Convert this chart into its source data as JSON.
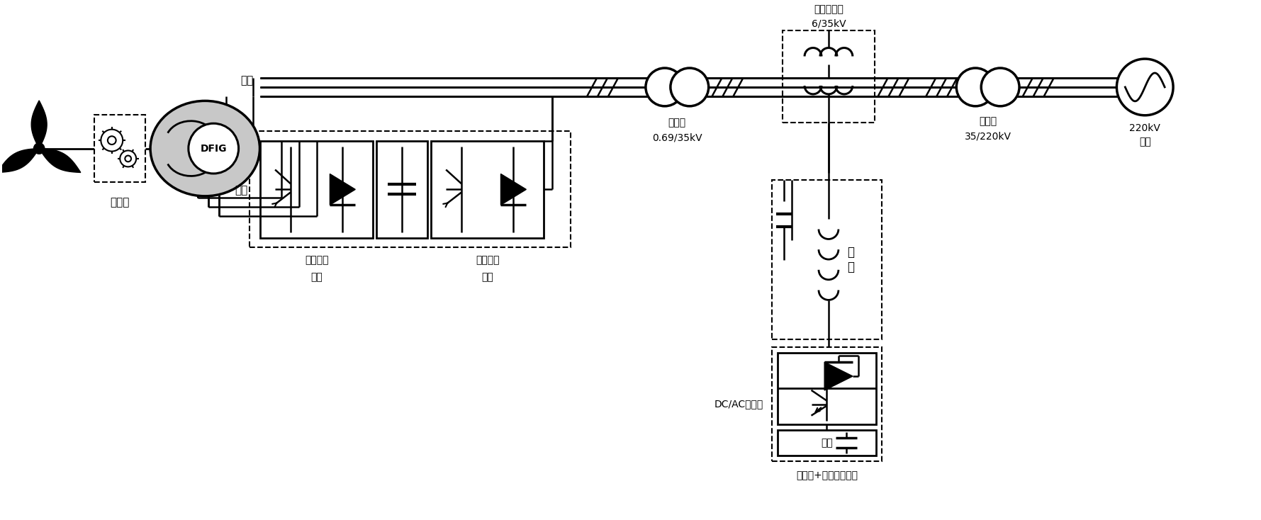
{
  "bg_color": "#ffffff",
  "labels": {
    "gearbox": "齿轮箱",
    "dfig": "DFIG",
    "stator": "定子",
    "rotor": "转子",
    "rotor_conv_line1": "转子侧变",
    "rotor_conv_line2": "流器",
    "grid_conv_line1": "电网侧变",
    "grid_conv_line2": "流器",
    "transformer1_line1": "变压器",
    "transformer1_line2": "0.69/35kV",
    "series_title": "串联变压器",
    "series_kv": "6/35kV",
    "filter": "滤\n波",
    "dcac": "DC/AC变流器",
    "transformer2_line1": "变压器",
    "transformer2_line2": "35/220kV",
    "grid_line1": "220kV",
    "grid_line2": "电网",
    "storage_label": "储能",
    "hybrid_storage": "蓄电池+超导混合储能"
  },
  "figsize": [
    17.79,
    7.34
  ],
  "dpi": 100
}
